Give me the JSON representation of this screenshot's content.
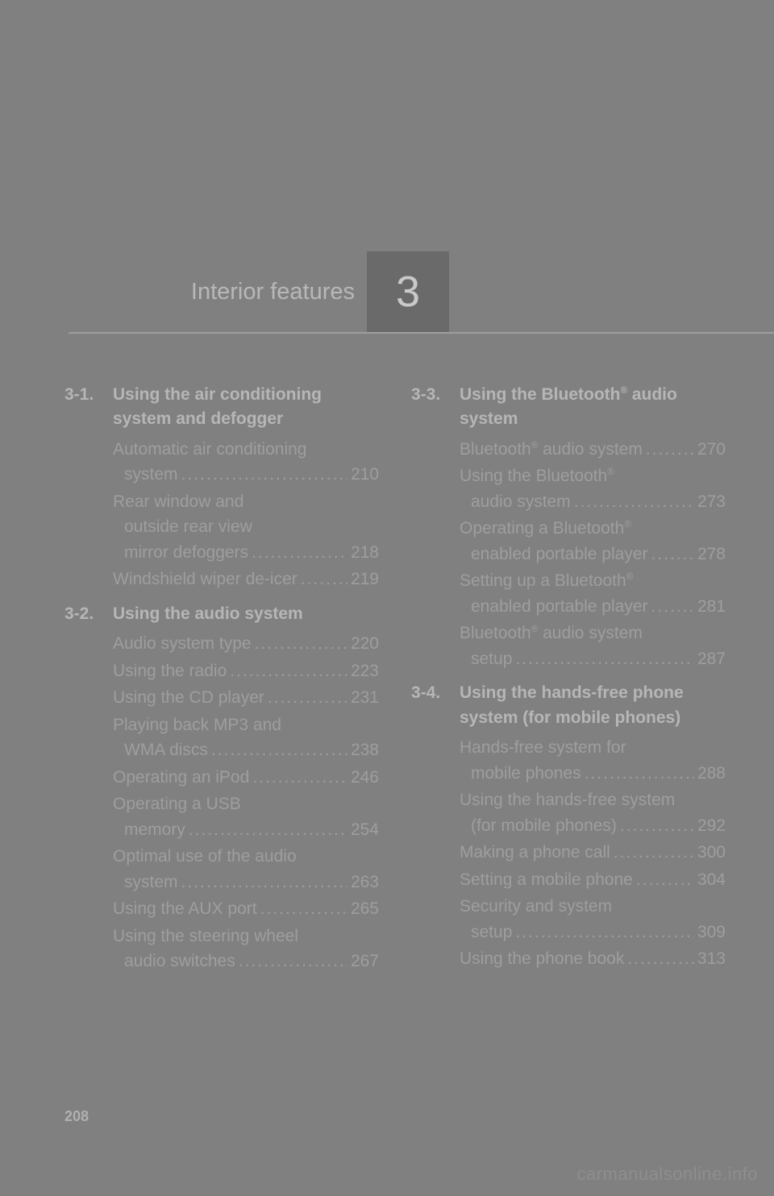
{
  "colors": {
    "page_bg": "#808080",
    "header_box_bg": "#6a6a6a",
    "text_light": "#b8b8b8",
    "text_body": "#9e9e9e",
    "rule": "#9e9e9e"
  },
  "chapter": {
    "number": "3",
    "title": "Interior features"
  },
  "page_number": "208",
  "watermark": "carmanualsonline.info",
  "sections": [
    {
      "num": "3-1.",
      "title": "Using the air conditioning system and defogger",
      "column": 0,
      "entries": [
        {
          "lines": [
            "Automatic air conditioning",
            "system"
          ],
          "page": "210"
        },
        {
          "lines": [
            "Rear window and",
            "outside rear view",
            "mirror defoggers"
          ],
          "page": "218"
        },
        {
          "lines": [
            "Windshield wiper de-icer"
          ],
          "page": "219"
        }
      ]
    },
    {
      "num": "3-2.",
      "title": "Using the audio system",
      "column": 0,
      "entries": [
        {
          "lines": [
            "Audio system type"
          ],
          "page": "220"
        },
        {
          "lines": [
            "Using the radio"
          ],
          "page": "223"
        },
        {
          "lines": [
            "Using the CD player"
          ],
          "page": "231"
        },
        {
          "lines": [
            "Playing back MP3 and",
            "WMA discs"
          ],
          "page": "238"
        },
        {
          "lines": [
            "Operating an iPod"
          ],
          "page": "246"
        },
        {
          "lines": [
            "Operating a USB",
            "memory"
          ],
          "page": "254"
        },
        {
          "lines": [
            "Optimal use of the audio",
            "system"
          ],
          "page": "263"
        },
        {
          "lines": [
            "Using the AUX port"
          ],
          "page": "265"
        },
        {
          "lines": [
            "Using the steering wheel",
            "audio switches"
          ],
          "page": "267"
        }
      ]
    },
    {
      "num": "3-3.",
      "title_html": "Using the Bluetooth<span class='sup'>®</span> audio system",
      "column": 1,
      "entries": [
        {
          "lines_html": [
            "Bluetooth<span class='sup'>®</span> audio system"
          ],
          "page": "270"
        },
        {
          "lines_html": [
            "Using the Bluetooth<span class='sup'>®</span>",
            "audio system"
          ],
          "page": "273"
        },
        {
          "lines_html": [
            "Operating a Bluetooth<span class='sup'>®</span>",
            "enabled portable player"
          ],
          "page": "278"
        },
        {
          "lines_html": [
            "Setting up a Bluetooth<span class='sup'>®</span>",
            "enabled portable player"
          ],
          "page": "281"
        },
        {
          "lines_html": [
            "Bluetooth<span class='sup'>®</span> audio system",
            "setup"
          ],
          "page": "287"
        }
      ]
    },
    {
      "num": "3-4.",
      "title": "Using the hands-free phone system (for mobile phones)",
      "column": 1,
      "entries": [
        {
          "lines": [
            "Hands-free system for",
            "mobile phones"
          ],
          "page": "288"
        },
        {
          "lines": [
            "Using the hands-free system",
            "(for mobile phones)"
          ],
          "page": "292"
        },
        {
          "lines": [
            "Making a phone call"
          ],
          "page": "300"
        },
        {
          "lines": [
            "Setting a mobile phone"
          ],
          "page": "304"
        },
        {
          "lines": [
            "Security and system",
            "setup"
          ],
          "page": "309"
        },
        {
          "lines": [
            "Using the phone book"
          ],
          "page": "313"
        }
      ]
    }
  ]
}
